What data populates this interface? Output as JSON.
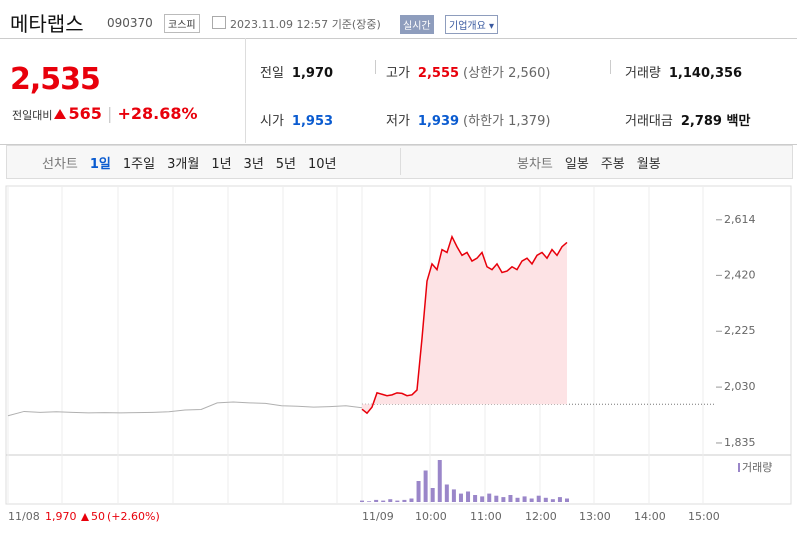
{
  "header": {
    "name": "메타랩스",
    "code": "090370",
    "market": "코스피",
    "datetime": "2023.11.09 12:57",
    "basis": "기준(장중)",
    "realtime": "실시간",
    "company": "기업개요"
  },
  "quote": {
    "price": "2,535",
    "change_label": "전일대비",
    "change": "565",
    "change_rate": "+28.68%"
  },
  "stats": [
    {
      "label": "전일",
      "value": "1,970"
    },
    {
      "label": "고가",
      "value": "2,555",
      "note": "(상한가 2,560)"
    },
    {
      "label": "거래량",
      "value": "1,140,356"
    },
    {
      "label": "시가",
      "value": "1,953"
    },
    {
      "label": "저가",
      "value": "1,939",
      "note": "(하한가 1,379)"
    },
    {
      "label": "거래대금",
      "value": "2,789 백만"
    }
  ],
  "tabs": {
    "line_label": "선차트",
    "line": [
      "1일",
      "1주일",
      "3개월",
      "1년",
      "3년",
      "5년",
      "10년"
    ],
    "candle_label": "봉차트",
    "candle": [
      "일봉",
      "주봉",
      "월봉"
    ]
  },
  "chart_data": {
    "type": "line",
    "ylim": [
      1793,
      2718
    ],
    "yticks": [
      {
        "value": 2614,
        "label": "2,614"
      },
      {
        "value": 2420,
        "label": "2,420"
      },
      {
        "value": 2225,
        "label": "2,225"
      },
      {
        "value": 2030,
        "label": "2,030"
      },
      {
        "value": 1835,
        "label": "1,835"
      }
    ],
    "xticks": [
      "11/08",
      "11/09",
      "10:00",
      "11:00",
      "12:00",
      "13:00",
      "14:00",
      "15:00"
    ],
    "baseline": 1970,
    "series": [
      {
        "name": "11/08",
        "color": "#b0b0b0",
        "values": [
          1930,
          1945,
          1942,
          1944,
          1942,
          1940,
          1941,
          1940,
          1941,
          1942,
          1944,
          1950,
          1952,
          1975,
          1978,
          1975,
          1973,
          1965,
          1963,
          1960,
          1962,
          1965,
          1958
        ]
      },
      {
        "name": "11/09",
        "color": "#e8000b",
        "values": [
          1953,
          1939,
          1960,
          2010,
          2005,
          2000,
          2003,
          2010,
          2008,
          2000,
          2003,
          2020,
          2200,
          2400,
          2460,
          2440,
          2510,
          2500,
          2555,
          2520,
          2490,
          2500,
          2470,
          2480,
          2500,
          2450,
          2440,
          2460,
          2430,
          2435,
          2450,
          2440,
          2470,
          2480,
          2460,
          2490,
          2500,
          2480,
          2510,
          2490,
          2520,
          2535
        ]
      }
    ],
    "volume": {
      "name": "거래량",
      "color": "#9a86c9",
      "values": [
        2,
        1,
        3,
        2,
        4,
        2,
        3,
        5,
        30,
        45,
        20,
        60,
        25,
        18,
        12,
        15,
        10,
        8,
        12,
        9,
        7,
        10,
        6,
        8,
        5,
        9,
        6,
        4,
        7,
        5
      ]
    },
    "prev_note": {
      "close": "1,970",
      "change": "50",
      "rate": "(+2.60%)"
    }
  }
}
